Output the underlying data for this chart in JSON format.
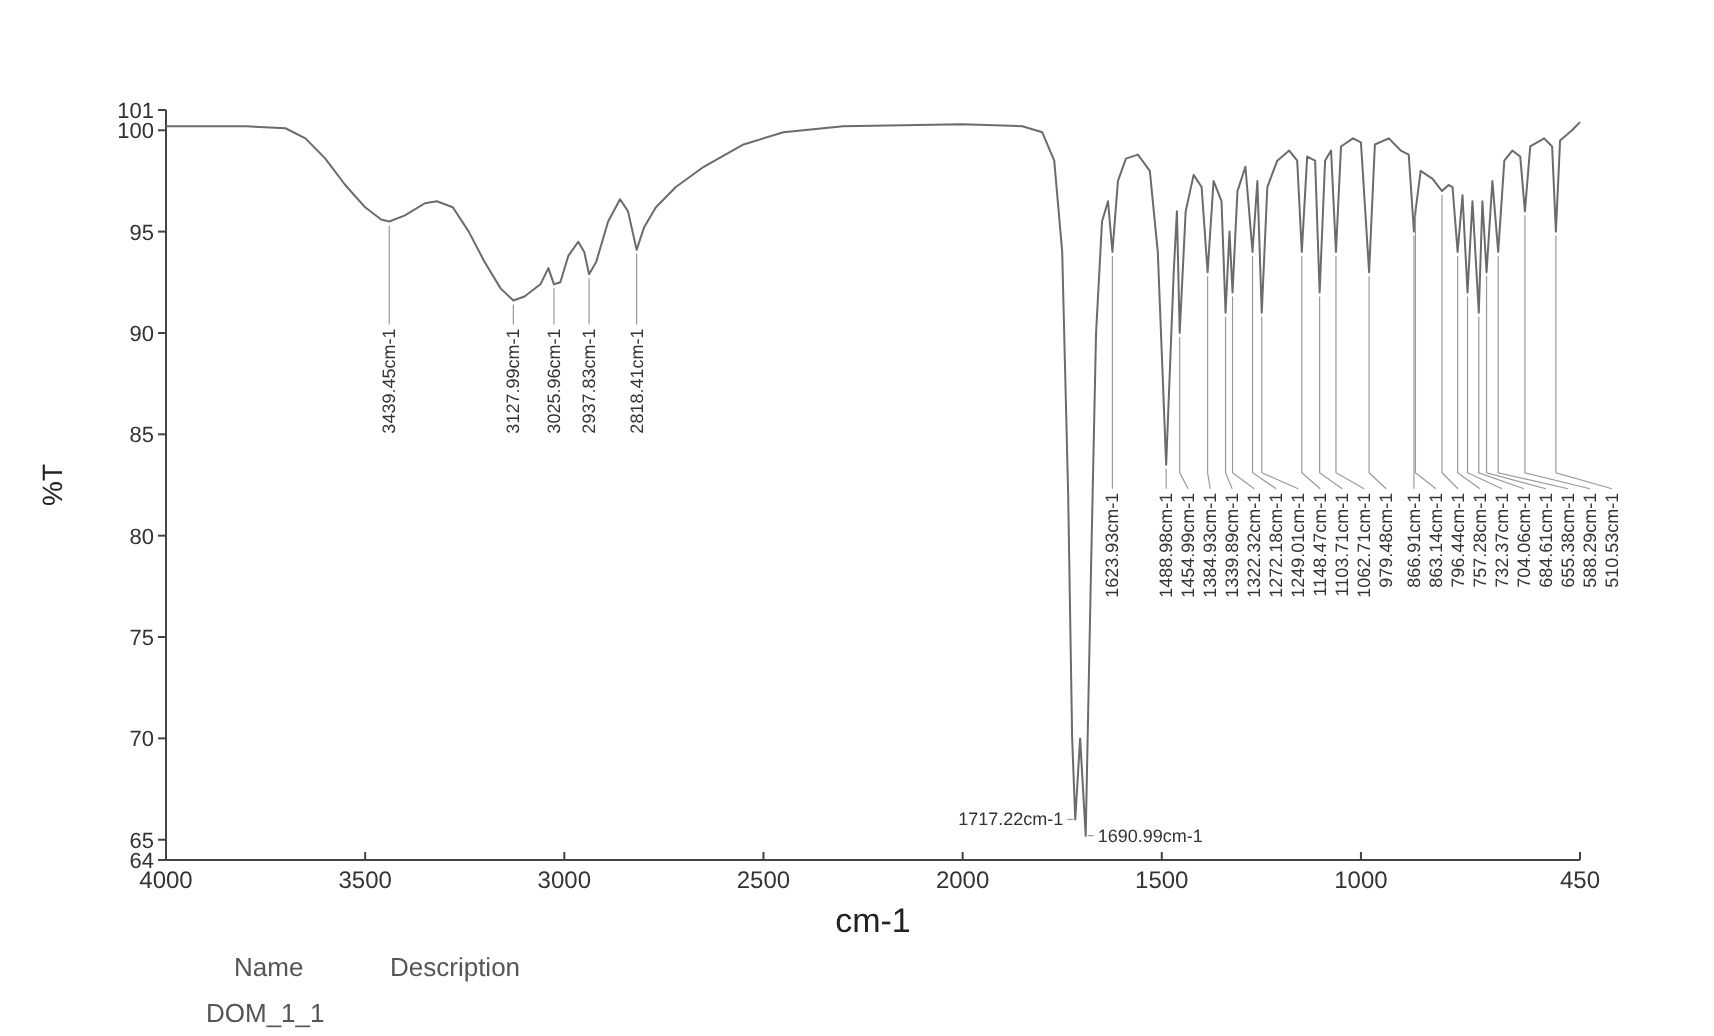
{
  "chart_data": {
    "type": "line",
    "xlabel": "cm-1",
    "ylabel": "%T",
    "xlim": [
      4000,
      450
    ],
    "xticks": [
      4000,
      3500,
      3000,
      2500,
      2000,
      1500,
      1000,
      450
    ],
    "ylim": [
      64,
      101
    ],
    "yticks": [
      64,
      65,
      70,
      75,
      80,
      85,
      90,
      95,
      100,
      101
    ],
    "grid": false,
    "marker": "none",
    "line_style": "solid",
    "series": [
      {
        "color": "#6b6b6b",
        "x": [
          4000,
          3800,
          3700,
          3650,
          3600,
          3550,
          3500,
          3460,
          3439.45,
          3400,
          3350,
          3320,
          3280,
          3240,
          3200,
          3160,
          3127.99,
          3100,
          3060,
          3040,
          3025.96,
          3010,
          2990,
          2965,
          2950,
          2937.83,
          2920,
          2890,
          2860,
          2840,
          2818.41,
          2800,
          2770,
          2720,
          2650,
          2550,
          2450,
          2300,
          2000,
          1850,
          1800,
          1770,
          1750,
          1735,
          1725,
          1717.22,
          1705,
          1690.99,
          1678,
          1665,
          1650,
          1635,
          1623.93,
          1610,
          1590,
          1560,
          1530,
          1510,
          1488.98,
          1470,
          1462,
          1454.99,
          1440,
          1420,
          1400,
          1384.93,
          1370,
          1350,
          1339.89,
          1330,
          1322.32,
          1310,
          1290,
          1272.18,
          1260,
          1249.01,
          1235,
          1210,
          1180,
          1160,
          1148.47,
          1135,
          1115,
          1103.71,
          1090,
          1075,
          1062.71,
          1050,
          1020,
          1000,
          979.48,
          965,
          930,
          900,
          880,
          866.91,
          863.14,
          850,
          820,
          796.44,
          780,
          770,
          757.28,
          745,
          732.37,
          720,
          704.06,
          695,
          684.61,
          670,
          655.38,
          640,
          620,
          600,
          588.29,
          575,
          540,
          520,
          510.53,
          500,
          470,
          450
        ],
        "values": [
          100.2,
          100.2,
          100.1,
          99.6,
          98.6,
          97.3,
          96.2,
          95.6,
          95.5,
          95.8,
          96.4,
          96.5,
          96.2,
          95,
          93.5,
          92.2,
          91.6,
          91.8,
          92.4,
          93.2,
          92.4,
          92.5,
          93.8,
          94.5,
          94,
          92.9,
          93.5,
          95.5,
          96.6,
          96,
          94.1,
          95.2,
          96.2,
          97.2,
          98.2,
          99.3,
          99.9,
          100.2,
          100.3,
          100.2,
          99.9,
          98.5,
          94,
          82,
          70,
          66,
          70,
          65.2,
          78,
          90,
          95.5,
          96.5,
          94,
          97.5,
          98.6,
          98.8,
          98,
          94,
          83.5,
          93,
          96,
          90,
          96,
          97.8,
          97.2,
          93,
          97.5,
          96.5,
          91,
          95,
          92,
          97,
          98.2,
          94,
          97.5,
          91,
          97.2,
          98.5,
          99,
          98.5,
          94,
          98.7,
          98.5,
          92,
          98.5,
          99,
          94,
          99.2,
          99.6,
          99.4,
          93,
          99.3,
          99.6,
          99,
          98.8,
          95,
          96,
          98,
          97.6,
          97,
          97.3,
          97.2,
          94,
          96.8,
          92,
          96.5,
          91,
          96.5,
          93,
          97.5,
          94,
          98.5,
          99,
          98.7,
          96,
          99.2,
          99.6,
          99.2,
          95,
          99.5,
          100,
          100.4
        ]
      }
    ],
    "annotations": [
      {
        "text": "3439.45cm-1",
        "x": 3439.45,
        "y": 95.5
      },
      {
        "text": "3127.99cm-1",
        "x": 3127.99,
        "y": 91.6
      },
      {
        "text": "3025.96cm-1",
        "x": 3025.96,
        "y": 92.4
      },
      {
        "text": "2937.83cm-1",
        "x": 2937.83,
        "y": 92.9
      },
      {
        "text": "2818.41cm-1",
        "x": 2818.41,
        "y": 94.1
      },
      {
        "text": "1717.22cm-1",
        "x": 1717.22,
        "y": 66
      },
      {
        "text": "1690.99cm-1",
        "x": 1690.99,
        "y": 65.2
      },
      {
        "text": "1623.93cm-1",
        "x": 1623.93,
        "y": 94
      },
      {
        "text": "1488.98cm-1",
        "x": 1488.98,
        "y": 83.5
      },
      {
        "text": "1454.99cm-1",
        "x": 1454.99,
        "y": 90
      },
      {
        "text": "1384.93cm-1",
        "x": 1384.93,
        "y": 93
      },
      {
        "text": "1339.89cm-1",
        "x": 1339.89,
        "y": 91
      },
      {
        "text": "1322.32cm-1",
        "x": 1322.32,
        "y": 92
      },
      {
        "text": "1272.18cm-1",
        "x": 1272.18,
        "y": 94
      },
      {
        "text": "1249.01cm-1",
        "x": 1249.01,
        "y": 91
      },
      {
        "text": "1148.47cm-1",
        "x": 1148.47,
        "y": 94
      },
      {
        "text": "1103.71cm-1",
        "x": 1103.71,
        "y": 92
      },
      {
        "text": "1062.71cm-1",
        "x": 1062.71,
        "y": 94
      },
      {
        "text": "979.48cm-1",
        "x": 979.48,
        "y": 93
      },
      {
        "text": "866.91cm-1",
        "x": 866.91,
        "y": 95
      },
      {
        "text": "863.14cm-1",
        "x": 863.14,
        "y": 96
      },
      {
        "text": "796.44cm-1",
        "x": 796.44,
        "y": 97
      },
      {
        "text": "757.28cm-1",
        "x": 757.28,
        "y": 94
      },
      {
        "text": "732.37cm-1",
        "x": 732.37,
        "y": 92
      },
      {
        "text": "704.06cm-1",
        "x": 704.06,
        "y": 91
      },
      {
        "text": "684.61cm-1",
        "x": 684.61,
        "y": 93
      },
      {
        "text": "655.38cm-1",
        "x": 655.38,
        "y": 94
      },
      {
        "text": "588.29cm-1",
        "x": 588.29,
        "y": 96
      },
      {
        "text": "510.53cm-1",
        "x": 510.53,
        "y": 95
      },
      "Name",
      "Description",
      "DOM_1_1"
    ]
  }
}
